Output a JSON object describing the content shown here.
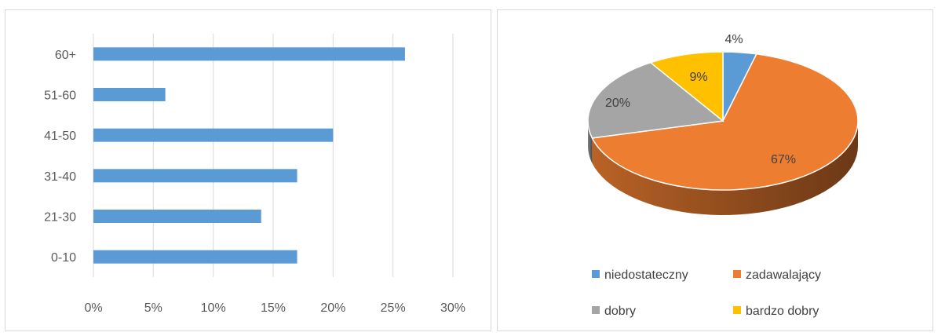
{
  "chart_data": [
    {
      "type": "bar",
      "orientation": "horizontal",
      "categories": [
        "60+",
        "51-60",
        "41-50",
        "31-40",
        "21-30",
        "0-10"
      ],
      "values": [
        26,
        6,
        20,
        17,
        14,
        17
      ],
      "xlim": [
        0,
        30
      ],
      "x_ticks": [
        "0%",
        "5%",
        "10%",
        "15%",
        "20%",
        "25%",
        "30%"
      ],
      "grid": "vertical",
      "bar_color": "#5b9bd5",
      "title": "",
      "xlabel": "",
      "ylabel": ""
    },
    {
      "type": "pie",
      "style": "3d",
      "slices": [
        {
          "label": "niedostateczny",
          "value": 4,
          "display": "4%",
          "color": "#5b9bd5"
        },
        {
          "label": "zadawalający",
          "value": 67,
          "display": "67%",
          "color": "#ed7d31"
        },
        {
          "label": "dobry",
          "value": 20,
          "display": "20%",
          "color": "#a5a5a5"
        },
        {
          "label": "bardzo dobry",
          "value": 9,
          "display": "9%",
          "color": "#ffc000"
        }
      ],
      "legend_position": "bottom",
      "title": ""
    }
  ]
}
